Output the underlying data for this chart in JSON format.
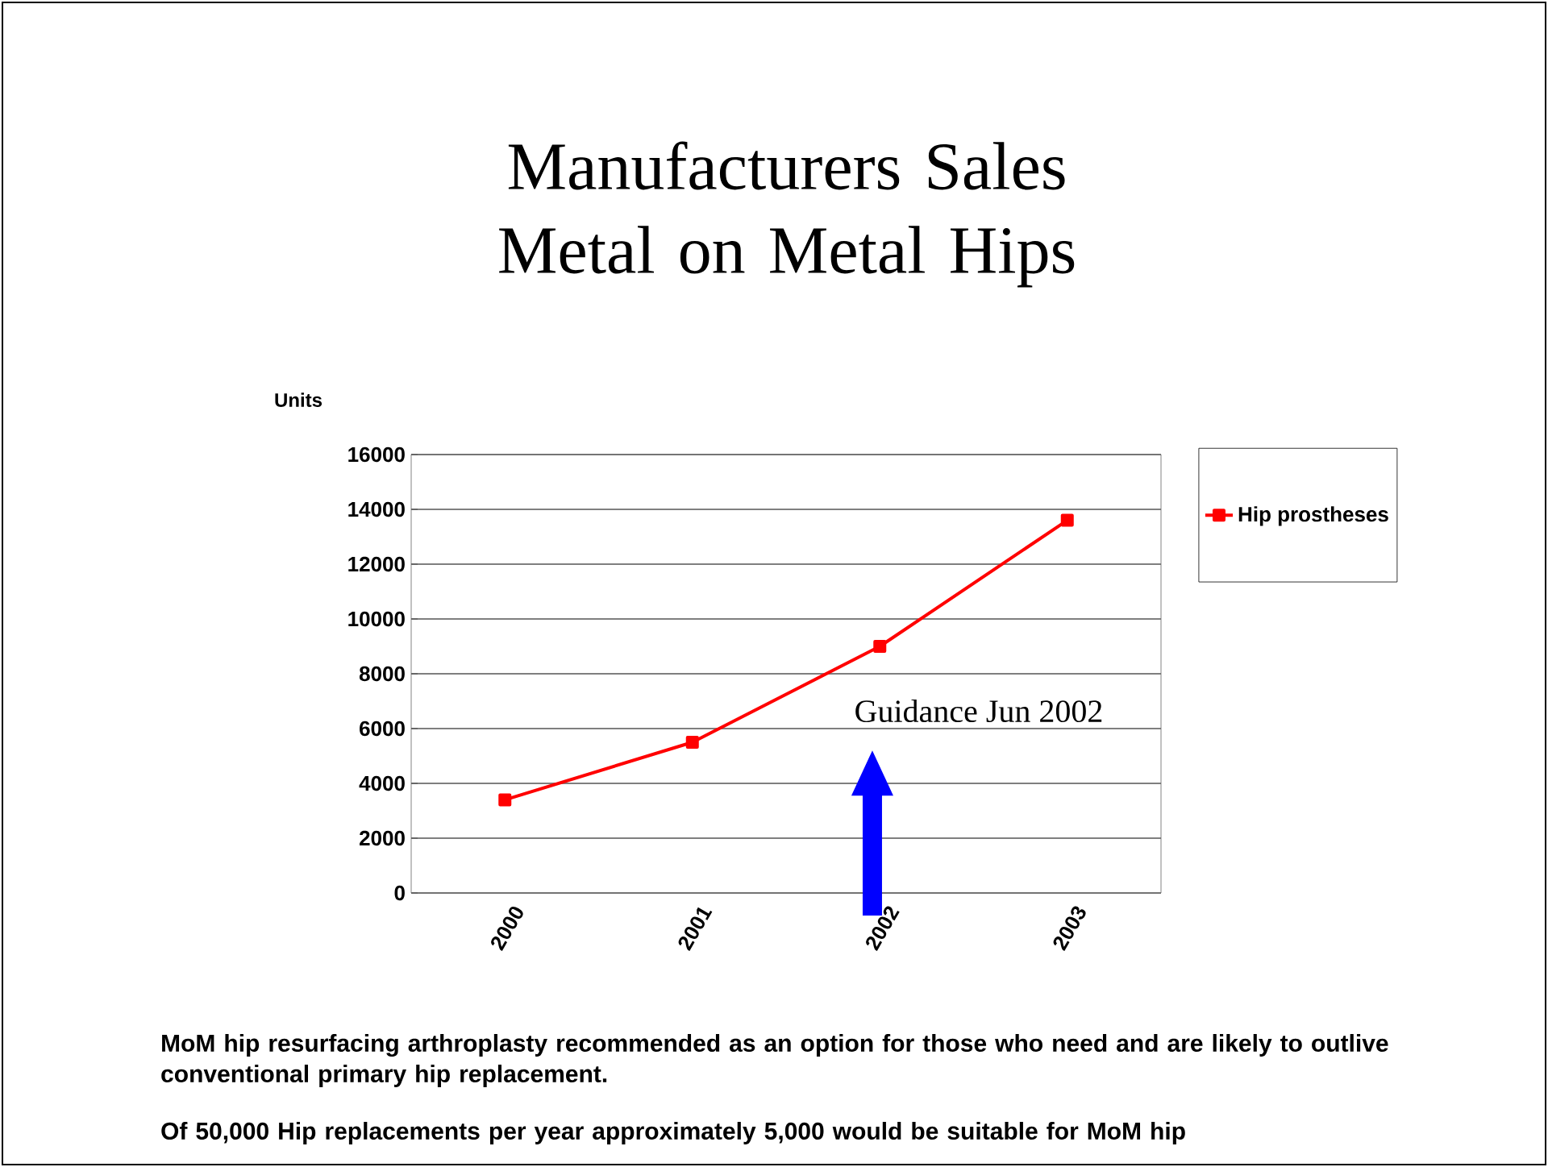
{
  "chart_data": {
    "type": "line",
    "title": "Manufacturers Sales Metal on Metal Hips",
    "ylabel": "Units",
    "categories": [
      "2000",
      "2001",
      "2002",
      "2003"
    ],
    "series": [
      {
        "name": "Hip prostheses",
        "color": "#ff0000",
        "values": [
          3400,
          5500,
          9000,
          13600
        ]
      }
    ],
    "ylim": [
      0,
      16000
    ],
    "yticks": [
      0,
      2000,
      4000,
      6000,
      8000,
      10000,
      12000,
      14000,
      16000
    ],
    "grid": "y",
    "legend": "right",
    "marker": "square",
    "annotations": [
      "Guidance Jun 2002",
      "MoM hip resurfacing arthroplasty recommended as an option for those who need and are likely to outlive conventional primary hip replacement.",
      "Of 50,000 Hip replacements per year approximately 5,000 would be suitable for MoM hip"
    ]
  }
}
